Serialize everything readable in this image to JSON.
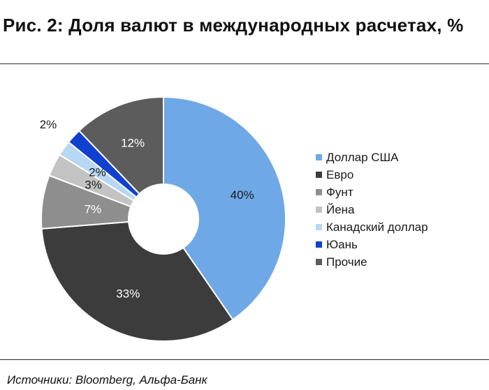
{
  "page": {
    "title": "Рис. 2: Доля валют в международных расчетах, %",
    "source": "Источники: Bloomberg, Альфа-Банк"
  },
  "chart_data": {
    "type": "pie",
    "subtype": "doughnut",
    "title": "Рис. 2: Доля валют в международных расчетах, %",
    "legend_position": "right",
    "slices": [
      {
        "label": "Доллар США",
        "value": 40,
        "display": "40%",
        "color": "#6fa8e6"
      },
      {
        "label": "Евро",
        "value": 33,
        "display": "33%",
        "color": "#3c3c3c"
      },
      {
        "label": "Фунт",
        "value": 7,
        "display": "7%",
        "color": "#8e8e8e"
      },
      {
        "label": "Йена",
        "value": 3,
        "display": "3%",
        "color": "#c3c3c3"
      },
      {
        "label": "Канадский доллар",
        "value": 2,
        "display": "2%",
        "color": "#b7d7f4"
      },
      {
        "label": "Юань",
        "value": 2,
        "display": "2%",
        "color": "#1040d0"
      },
      {
        "label": "Прочие",
        "value": 12,
        "display": "12%",
        "color": "#5c5c5c"
      }
    ]
  }
}
